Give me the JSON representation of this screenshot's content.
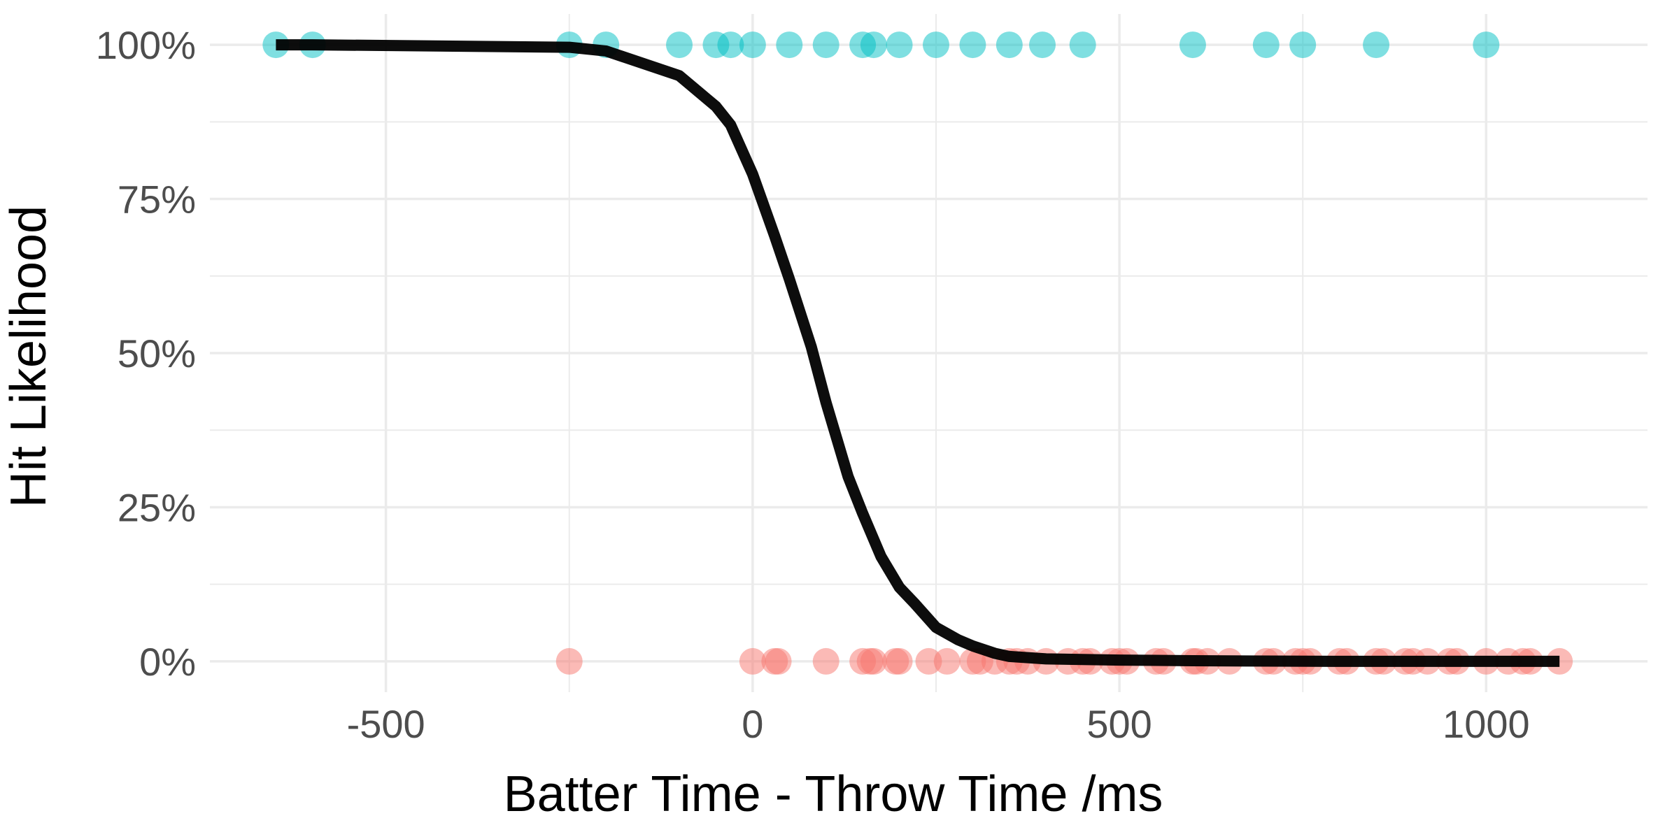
{
  "chart_data": {
    "type": "scatter",
    "xlabel": "Batter Time - Throw Time /ms",
    "ylabel": "Hit Likelihood",
    "xlim": [
      -740,
      1220
    ],
    "ylim": [
      -0.05,
      1.05
    ],
    "x_ticks": [
      -500,
      0,
      500,
      1000
    ],
    "y_ticks": [
      0,
      0.25,
      0.5,
      0.75,
      1.0
    ],
    "y_tick_labels": [
      "0%",
      "25%",
      "50%",
      "75%",
      "100%"
    ],
    "grid": true,
    "legend": "none",
    "colors": {
      "hit": "#00BFC4",
      "miss": "#F8766D",
      "curve": "#000000",
      "grid": "#ebebeb"
    },
    "series": [
      {
        "outcome": 1,
        "x": [
          -650,
          -600,
          -250,
          -200,
          -100,
          -50,
          -30,
          0,
          50,
          100,
          150,
          165,
          200,
          250,
          300,
          350,
          395,
          450,
          600,
          700,
          750,
          850,
          1000
        ],
        "y": [
          1,
          1,
          1,
          1,
          1,
          1,
          1,
          1,
          1,
          1,
          1,
          1,
          1,
          1,
          1,
          1,
          1,
          1,
          1,
          1,
          1,
          1,
          1
        ]
      },
      {
        "outcome": 0,
        "x": [
          -250,
          0,
          30,
          35,
          100,
          150,
          160,
          165,
          195,
          200,
          240,
          265,
          300,
          310,
          330,
          350,
          360,
          375,
          400,
          430,
          450,
          460,
          490,
          500,
          510,
          550,
          560,
          600,
          605,
          620,
          650,
          700,
          710,
          740,
          750,
          760,
          800,
          810,
          850,
          860,
          890,
          900,
          920,
          950,
          960,
          1000,
          1030,
          1050,
          1060,
          1100
        ],
        "y": [
          0,
          0,
          0,
          0,
          0,
          0,
          0,
          0,
          0,
          0,
          0,
          0,
          0,
          0,
          0,
          0,
          0,
          0,
          0,
          0,
          0,
          0,
          0,
          0,
          0,
          0,
          0,
          0,
          0,
          0,
          0,
          0,
          0,
          0,
          0,
          0,
          0,
          0,
          0,
          0,
          0,
          0,
          0,
          0,
          0,
          0,
          0,
          0,
          0,
          0
        ]
      },
      {
        "type": "line",
        "x": [
          -650,
          -600,
          -250,
          -200,
          -100,
          -50,
          -30,
          0,
          30,
          50,
          80,
          100,
          130,
          150,
          175,
          200,
          220,
          250,
          280,
          300,
          330,
          350,
          400,
          450,
          500,
          600,
          800,
          1000,
          1100
        ],
        "y": [
          1.0,
          1.0,
          0.996,
          0.99,
          0.95,
          0.9,
          0.87,
          0.79,
          0.69,
          0.62,
          0.51,
          0.42,
          0.3,
          0.24,
          0.17,
          0.12,
          0.095,
          0.055,
          0.035,
          0.025,
          0.013,
          0.008,
          0.004,
          0.003,
          0.002,
          0.001,
          0.0,
          0.0,
          0.0
        ]
      }
    ]
  }
}
